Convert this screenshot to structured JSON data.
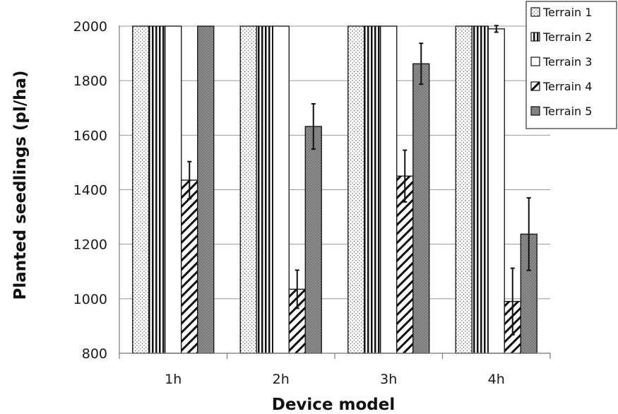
{
  "chart_data": {
    "type": "bar",
    "categories": [
      "1h",
      "2h",
      "3h",
      "4h"
    ],
    "xlabel": "Device model",
    "ylabel": "Planted seedlings (pl/ha)",
    "ylim": [
      800,
      2000
    ],
    "yticks": [
      800,
      1000,
      1200,
      1400,
      1600,
      1800,
      2000
    ],
    "grid": true,
    "legend_position": "top-right",
    "series": [
      {
        "name": "Terrain 1",
        "values": [
          2000,
          2000,
          2000,
          2000
        ],
        "errors": [
          0,
          0,
          0,
          0
        ],
        "pattern": "dots"
      },
      {
        "name": "Terrain 2",
        "values": [
          2000,
          2000,
          2000,
          2000
        ],
        "errors": [
          0,
          0,
          0,
          0
        ],
        "pattern": "vertical-lines"
      },
      {
        "name": "Terrain 3",
        "values": [
          2000,
          2000,
          2000,
          1990
        ],
        "errors": [
          0,
          0,
          0,
          12
        ],
        "pattern": "solid-white"
      },
      {
        "name": "Terrain 4",
        "values": [
          1435,
          1035,
          1450,
          990
        ],
        "errors": [
          68,
          70,
          95,
          122
        ],
        "pattern": "diagonal-hatch"
      },
      {
        "name": "Terrain 5",
        "values": [
          2000,
          1632,
          1862,
          1237
        ],
        "errors": [
          0,
          83,
          75,
          133
        ],
        "pattern": "gray-dots"
      }
    ]
  }
}
